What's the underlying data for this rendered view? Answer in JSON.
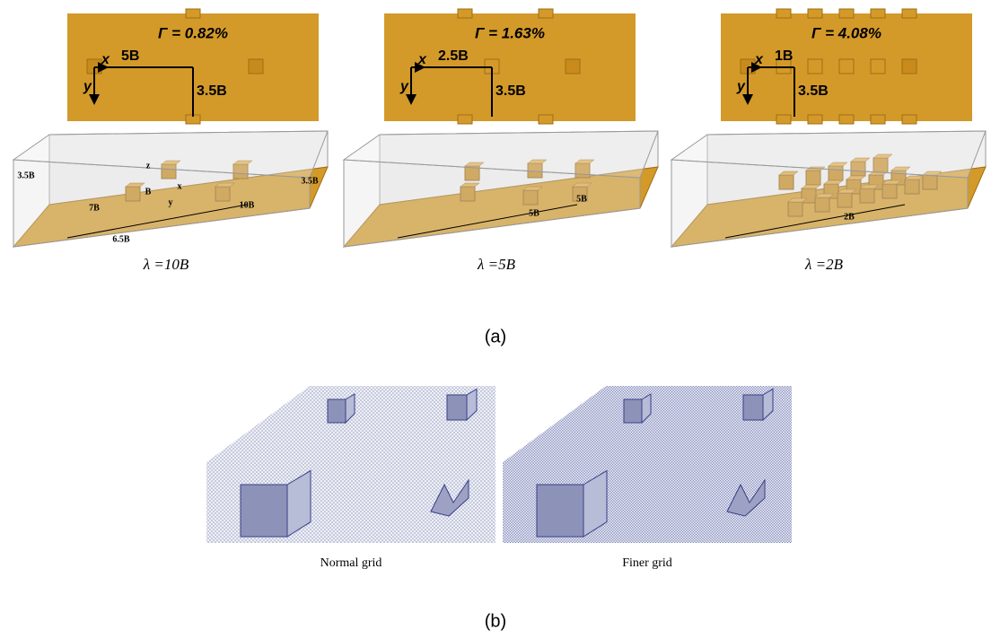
{
  "panel_a": {
    "label": "(a)",
    "columns": [
      {
        "gamma": "Γ = 0.82%",
        "top_labels": {
          "x": "x",
          "y": "y",
          "spacing": "5B",
          "offset": "3.5B"
        },
        "iso_labels": [
          "3.5B",
          "7B",
          "6.5B",
          "10B",
          "3.5B",
          "z",
          "x",
          "y",
          "B"
        ],
        "caption": "λ =10B"
      },
      {
        "gamma": "Γ = 1.63%",
        "top_labels": {
          "x": "x",
          "y": "y",
          "spacing": "2.5B",
          "offset": "3.5B"
        },
        "iso_labels": [
          "5B",
          "5B"
        ],
        "caption": "λ =5B"
      },
      {
        "gamma": "Γ = 4.08%",
        "top_labels": {
          "x": "x",
          "y": "y",
          "spacing": "1B",
          "offset": "3.5B"
        },
        "iso_labels": [
          "2B"
        ],
        "caption": "λ =2B"
      }
    ]
  },
  "panel_b": {
    "label": "(b)",
    "views": [
      {
        "caption": "Normal grid"
      },
      {
        "caption": "Finer grid"
      }
    ]
  }
}
